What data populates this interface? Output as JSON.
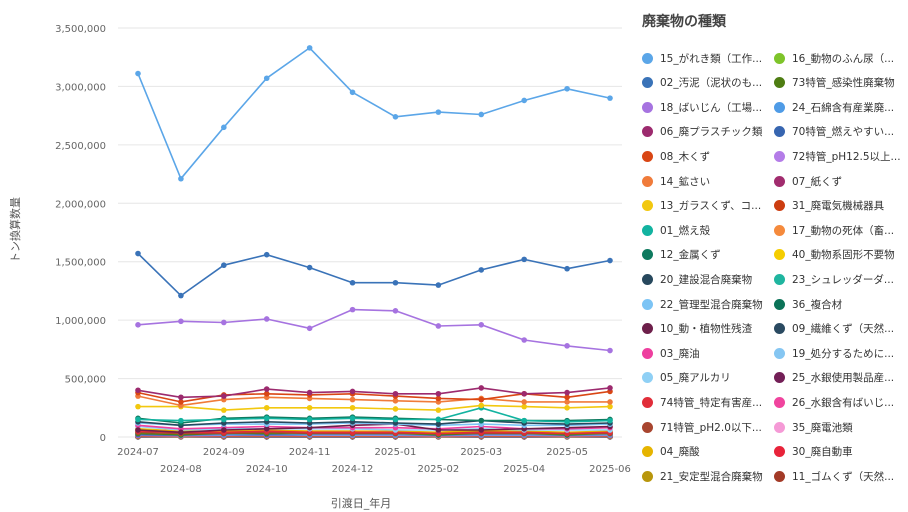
{
  "chart_data": {
    "type": "line",
    "xlabel": "引渡日_年月",
    "ylabel": "トン換算数量",
    "ylim": [
      0,
      3500000
    ],
    "yticks": [
      0,
      500000,
      1000000,
      1500000,
      2000000,
      2500000,
      3000000,
      3500000
    ],
    "ytick_labels": [
      "0",
      "500,000",
      "1,000,000",
      "1,500,000",
      "2,000,000",
      "2,500,000",
      "3,000,000",
      "3,500,000"
    ],
    "x": [
      "2024-07",
      "2024-08",
      "2024-09",
      "2024-10",
      "2024-11",
      "2024-12",
      "2025-01",
      "2025-02",
      "2025-03",
      "2025-04",
      "2025-05",
      "2025-06"
    ],
    "grid": "horizontal",
    "legend_title": "廃棄物の種類",
    "legend_position": "right",
    "series": [
      {
        "name": "15_がれき類（工作...",
        "color": "#5ba6e8",
        "values": [
          3110000,
          2210000,
          2650000,
          3070000,
          3330000,
          2950000,
          2740000,
          2780000,
          2760000,
          2880000,
          2980000,
          2900000
        ]
      },
      {
        "name": "02_汚泥（泥状のも...",
        "color": "#3a73b8",
        "values": [
          1570000,
          1210000,
          1470000,
          1560000,
          1450000,
          1320000,
          1320000,
          1300000,
          1430000,
          1520000,
          1440000,
          1510000
        ]
      },
      {
        "name": "18_ばいじん（工場...",
        "color": "#a673e0",
        "values": [
          960000,
          990000,
          980000,
          1010000,
          930000,
          1090000,
          1080000,
          950000,
          960000,
          830000,
          780000,
          740000
        ]
      },
      {
        "name": "06_廃プラスチック類",
        "color": "#9c2a6e",
        "values": [
          400000,
          340000,
          350000,
          410000,
          380000,
          390000,
          370000,
          370000,
          420000,
          370000,
          380000,
          420000
        ]
      },
      {
        "name": "08_木くず",
        "color": "#d94614",
        "values": [
          380000,
          300000,
          360000,
          370000,
          360000,
          370000,
          350000,
          330000,
          320000,
          370000,
          340000,
          390000
        ]
      },
      {
        "name": "14_鉱さい",
        "color": "#f07b3a",
        "values": [
          350000,
          270000,
          320000,
          340000,
          330000,
          320000,
          310000,
          300000,
          330000,
          300000,
          300000,
          300000
        ]
      },
      {
        "name": "13_ガラスくず、コ...",
        "color": "#f2c80f",
        "values": [
          260000,
          260000,
          230000,
          250000,
          250000,
          250000,
          240000,
          230000,
          270000,
          260000,
          250000,
          260000
        ]
      },
      {
        "name": "01_燃え殻",
        "color": "#12b3a0",
        "values": [
          150000,
          140000,
          150000,
          160000,
          150000,
          160000,
          150000,
          150000,
          250000,
          140000,
          130000,
          140000
        ]
      },
      {
        "name": "12_金属くず",
        "color": "#0e7a5f",
        "values": [
          160000,
          120000,
          160000,
          170000,
          160000,
          170000,
          160000,
          150000,
          140000,
          140000,
          140000,
          150000
        ]
      },
      {
        "name": "20_建設混合廃棄物",
        "color": "#27485d",
        "values": [
          130000,
          100000,
          120000,
          130000,
          120000,
          130000,
          120000,
          110000,
          140000,
          120000,
          110000,
          120000
        ]
      },
      {
        "name": "22_管理型混合廃棄物",
        "color": "#7cc4f5",
        "values": [
          120000,
          100000,
          110000,
          110000,
          110000,
          120000,
          110000,
          100000,
          110000,
          100000,
          100000,
          110000
        ]
      },
      {
        "name": "10_動・植物性残渣",
        "color": "#6d1f4a",
        "values": [
          60000,
          40000,
          60000,
          70000,
          80000,
          100000,
          110000,
          60000,
          60000,
          70000,
          80000,
          90000
        ]
      },
      {
        "name": "03_廃油",
        "color": "#ee3f9f",
        "values": [
          100000,
          70000,
          80000,
          90000,
          80000,
          80000,
          80000,
          70000,
          90000,
          70000,
          70000,
          80000
        ]
      },
      {
        "name": "05_廃アルカリ",
        "color": "#8fd0f5",
        "values": [
          90000,
          60000,
          70000,
          70000,
          70000,
          70000,
          60000,
          60000,
          70000,
          60000,
          60000,
          60000
        ]
      },
      {
        "name": "74特管_特定有害産...",
        "color": "#e12d39",
        "values": [
          50000,
          40000,
          40000,
          50000,
          40000,
          40000,
          40000,
          30000,
          40000,
          40000,
          30000,
          40000
        ]
      },
      {
        "name": "71特管_pH2.0以下...",
        "color": "#a8452f",
        "values": [
          40000,
          30000,
          30000,
          40000,
          30000,
          30000,
          30000,
          30000,
          30000,
          30000,
          30000,
          30000
        ]
      },
      {
        "name": "04_廃酸",
        "color": "#e6b400",
        "values": [
          70000,
          50000,
          50000,
          60000,
          50000,
          50000,
          50000,
          40000,
          60000,
          50000,
          40000,
          50000
        ]
      },
      {
        "name": "21_安定型混合廃棄物",
        "color": "#b8960c",
        "values": [
          60000,
          40000,
          50000,
          50000,
          50000,
          50000,
          40000,
          40000,
          50000,
          40000,
          40000,
          40000
        ]
      },
      {
        "name": "16_動物のふん尿（...",
        "color": "#7ec42a",
        "values": [
          40000,
          30000,
          40000,
          40000,
          30000,
          40000,
          30000,
          30000,
          40000,
          30000,
          30000,
          30000
        ]
      },
      {
        "name": "73特管_感染性廃棄物",
        "color": "#4e7d12",
        "values": [
          30000,
          20000,
          30000,
          30000,
          30000,
          30000,
          30000,
          20000,
          30000,
          30000,
          20000,
          30000
        ]
      },
      {
        "name": "24_石綿含有産業廃...",
        "color": "#4f9be6",
        "values": [
          30000,
          20000,
          20000,
          30000,
          20000,
          20000,
          20000,
          20000,
          20000,
          20000,
          20000,
          20000
        ]
      },
      {
        "name": "70特管_燃えやすい...",
        "color": "#3765b0",
        "values": [
          20000,
          15000,
          20000,
          20000,
          20000,
          20000,
          20000,
          15000,
          20000,
          20000,
          15000,
          20000
        ]
      },
      {
        "name": "72特管_pH12.5以上...",
        "color": "#b47ce8",
        "values": [
          15000,
          10000,
          15000,
          15000,
          15000,
          15000,
          15000,
          10000,
          15000,
          15000,
          10000,
          15000
        ]
      },
      {
        "name": "07_紙くず",
        "color": "#a12c6e",
        "values": [
          12000,
          10000,
          12000,
          12000,
          12000,
          12000,
          12000,
          10000,
          12000,
          12000,
          10000,
          12000
        ]
      },
      {
        "name": "31_廃電気機械器具",
        "color": "#cc3d10",
        "values": [
          10000,
          8000,
          10000,
          10000,
          10000,
          10000,
          10000,
          8000,
          10000,
          10000,
          8000,
          10000
        ]
      },
      {
        "name": "17_動物の死体（畜...",
        "color": "#f58a3c",
        "values": [
          8000,
          6000,
          8000,
          8000,
          8000,
          8000,
          8000,
          6000,
          8000,
          8000,
          6000,
          8000
        ]
      },
      {
        "name": "40_動物系固形不要物",
        "color": "#f5cd00",
        "values": [
          7000,
          5000,
          7000,
          7000,
          7000,
          7000,
          7000,
          5000,
          7000,
          7000,
          5000,
          7000
        ]
      },
      {
        "name": "23_シュレッダーダ...",
        "color": "#1fb59f",
        "values": [
          6000,
          4000,
          6000,
          6000,
          6000,
          6000,
          6000,
          4000,
          6000,
          6000,
          4000,
          6000
        ]
      },
      {
        "name": "36_複合材",
        "color": "#0b7358",
        "values": [
          5000,
          4000,
          5000,
          5000,
          5000,
          5000,
          5000,
          4000,
          5000,
          5000,
          4000,
          5000
        ]
      },
      {
        "name": "09_繊維くず（天然...",
        "color": "#2a4a61",
        "values": [
          4000,
          3000,
          4000,
          4000,
          4000,
          4000,
          4000,
          3000,
          4000,
          4000,
          3000,
          4000
        ]
      },
      {
        "name": "19_処分するために...",
        "color": "#85c6f2",
        "values": [
          3000,
          2000,
          3000,
          3000,
          3000,
          3000,
          3000,
          2000,
          3000,
          3000,
          2000,
          3000
        ]
      },
      {
        "name": "25_水銀使用製品産...",
        "color": "#731f57",
        "values": [
          2000,
          1500,
          2000,
          2000,
          2000,
          2000,
          2000,
          1500,
          2000,
          2000,
          1500,
          2000
        ]
      },
      {
        "name": "26_水銀含有ばいじ...",
        "color": "#f0449e",
        "values": [
          1500,
          1000,
          1500,
          1500,
          1500,
          1500,
          1500,
          1000,
          1500,
          1500,
          1000,
          1500
        ]
      },
      {
        "name": "35_廃電池類",
        "color": "#f59ad6",
        "values": [
          1000,
          800,
          1000,
          1000,
          1000,
          1000,
          1000,
          800,
          1000,
          1000,
          800,
          1000
        ]
      },
      {
        "name": "30_廃自動車",
        "color": "#e8233a",
        "values": [
          800,
          600,
          800,
          800,
          800,
          800,
          800,
          600,
          800,
          800,
          600,
          800
        ]
      },
      {
        "name": "11_ゴムくず（天然...",
        "color": "#a33a27",
        "values": [
          600,
          400,
          600,
          600,
          600,
          600,
          600,
          400,
          600,
          600,
          400,
          600
        ]
      }
    ]
  }
}
